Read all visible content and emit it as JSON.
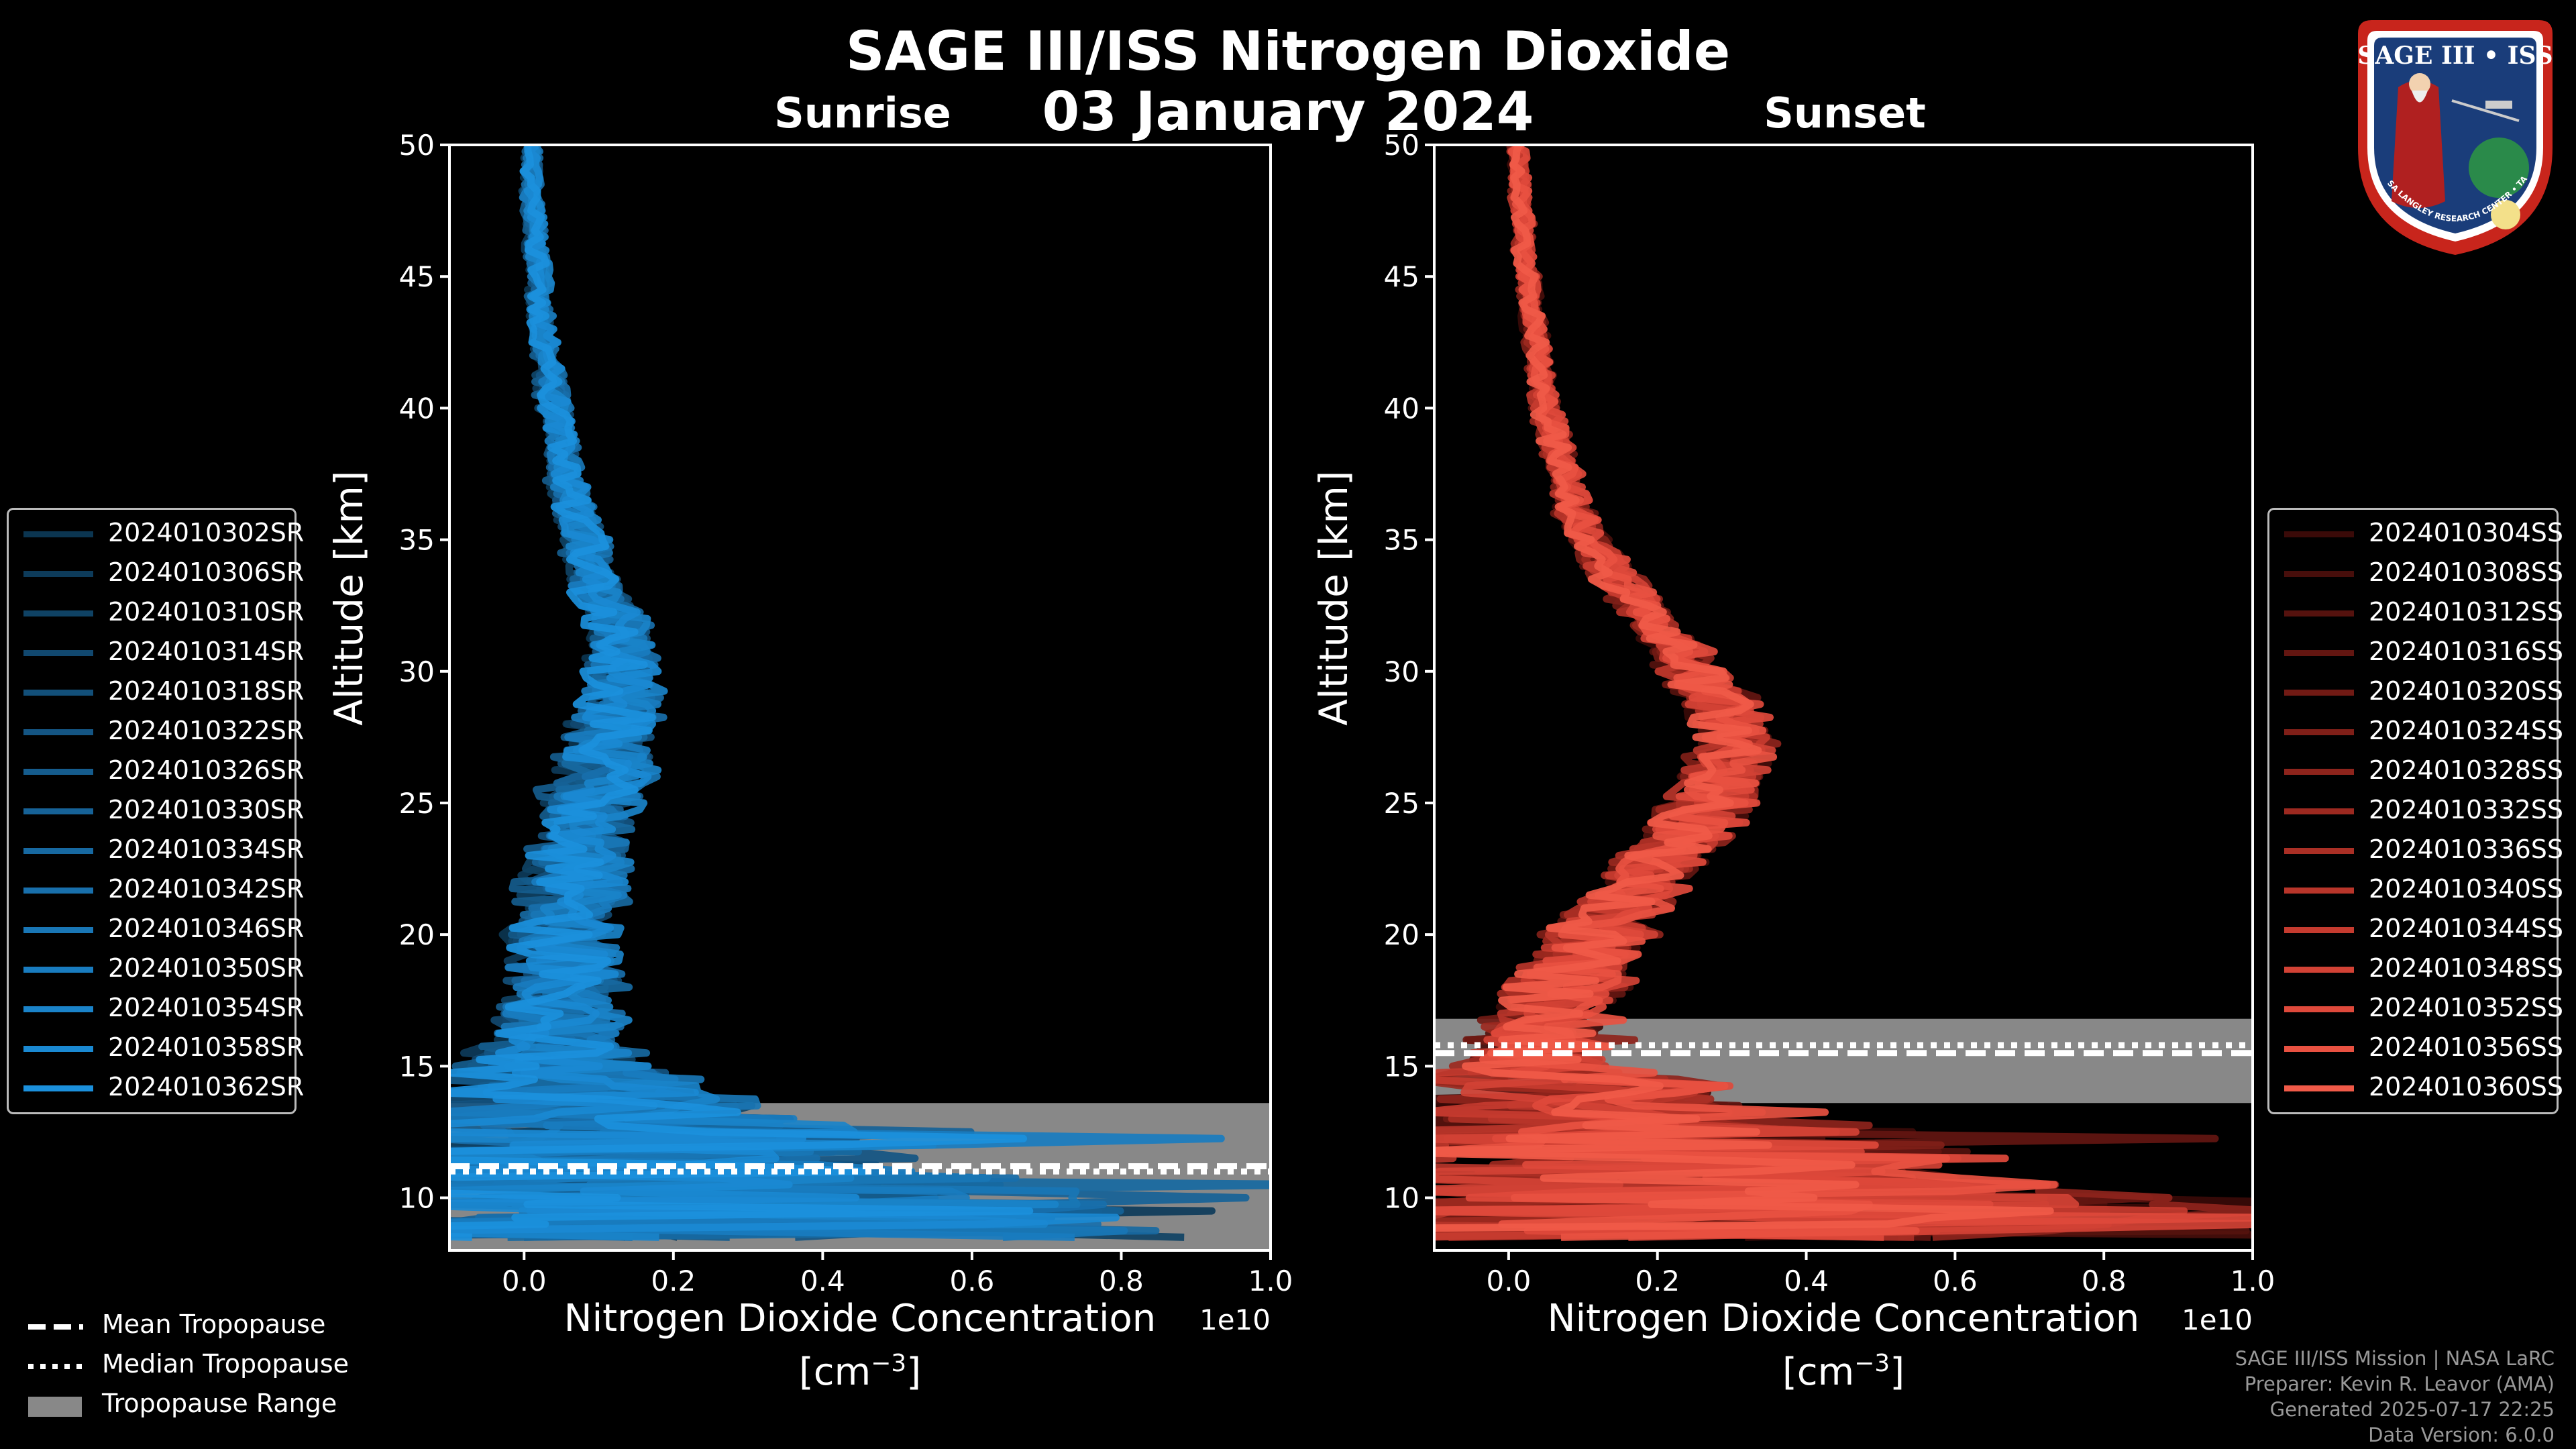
{
  "title": "SAGE III/ISS Nitrogen Dioxide",
  "date": "03 January 2024",
  "logo": {
    "line1": "SAGE III",
    "sep": "•",
    "line2": "ISS",
    "ring_text": "BALL • NASA LANGLEY RESEARCH CENTER • TAS-I • ESA"
  },
  "credits": [
    "SAGE III/ISS Mission | NASA LaRC",
    "Preparer: Kevin R. Leavor (AMA)",
    "Generated 2025-07-17 22:25",
    "Data Version: 6.0.0"
  ],
  "bottom_legend": {
    "mean": "Mean Tropopause",
    "median": "Median Tropopause",
    "range": "Tropopause Range"
  },
  "colors": {
    "sunrise_base": "#1a8cd8",
    "sunset_base": "#ef5a46",
    "tropopause_range": "#888888",
    "axes": "#ffffff"
  },
  "chart_data": [
    {
      "type": "line",
      "panel": "sunrise",
      "title": "Sunrise",
      "xlabel": "Nitrogen Dioxide Concentration",
      "xunit": "[cm",
      "xunit_exp": "−3",
      "xunit_close": "]",
      "x_offset_label": "1e10",
      "ylabel": "Altitude [km]",
      "xlim": [
        -0.1,
        1.0
      ],
      "ylim": [
        8,
        50
      ],
      "xticks": [
        0.0,
        0.2,
        0.4,
        0.6,
        0.8,
        1.0
      ],
      "xtick_labels": [
        "0.0",
        "0.2",
        "0.4",
        "0.6",
        "0.8",
        "1.0"
      ],
      "yticks": [
        10,
        15,
        20,
        25,
        30,
        35,
        40,
        45,
        50
      ],
      "ytick_labels": [
        "10",
        "15",
        "20",
        "25",
        "30",
        "35",
        "40",
        "45",
        "50"
      ],
      "tropopause": {
        "mean": 11.2,
        "median": 11.0,
        "range": [
          8.0,
          13.6
        ]
      },
      "series": [
        {
          "name": "2024010302SR",
          "color": "#0b3550"
        },
        {
          "name": "2024010306SR",
          "color": "#0d3b5a"
        },
        {
          "name": "2024010310SR",
          "color": "#0f4264"
        },
        {
          "name": "2024010314SR",
          "color": "#11486f"
        },
        {
          "name": "2024010318SR",
          "color": "#124f79"
        },
        {
          "name": "2024010322SR",
          "color": "#145583"
        },
        {
          "name": "2024010326SR",
          "color": "#155c8d"
        },
        {
          "name": "2024010330SR",
          "color": "#166297"
        },
        {
          "name": "2024010334SR",
          "color": "#1769a1"
        },
        {
          "name": "2024010342SR",
          "color": "#186fab"
        },
        {
          "name": "2024010346SR",
          "color": "#1976b5"
        },
        {
          "name": "2024010350SR",
          "color": "#197cbf"
        },
        {
          "name": "2024010354SR",
          "color": "#1a83c9"
        },
        {
          "name": "2024010358SR",
          "color": "#1a89d2"
        },
        {
          "name": "2024010362SR",
          "color": "#1b90dc"
        }
      ],
      "profile": {
        "alt": [
          8.5,
          9,
          10,
          11,
          12,
          13,
          14,
          15,
          16,
          17,
          18,
          19,
          20,
          21,
          22,
          23,
          24,
          25,
          26,
          27,
          28,
          29,
          30,
          31,
          32,
          33,
          34,
          35,
          36,
          37,
          38,
          39,
          40,
          41,
          42,
          43,
          44,
          45,
          46,
          47,
          48,
          49,
          50
        ],
        "mean": [
          0.15,
          0.2,
          0.2,
          0.15,
          0.12,
          0.1,
          0.08,
          0.05,
          0.04,
          0.04,
          0.05,
          0.05,
          0.05,
          0.06,
          0.07,
          0.07,
          0.08,
          0.09,
          0.1,
          0.11,
          0.12,
          0.13,
          0.13,
          0.13,
          0.12,
          0.1,
          0.09,
          0.08,
          0.07,
          0.06,
          0.05,
          0.05,
          0.04,
          0.035,
          0.03,
          0.025,
          0.02,
          0.02,
          0.015,
          0.015,
          0.01,
          0.01,
          0.01
        ],
        "spread": [
          0.6,
          0.6,
          0.5,
          0.4,
          0.35,
          0.3,
          0.2,
          0.13,
          0.09,
          0.08,
          0.08,
          0.07,
          0.07,
          0.07,
          0.07,
          0.06,
          0.06,
          0.06,
          0.07,
          0.06,
          0.06,
          0.05,
          0.05,
          0.04,
          0.04,
          0.035,
          0.03,
          0.03,
          0.025,
          0.025,
          0.02,
          0.02,
          0.02,
          0.018,
          0.016,
          0.015,
          0.015,
          0.014,
          0.013,
          0.012,
          0.012,
          0.011,
          0.01
        ]
      }
    },
    {
      "type": "line",
      "panel": "sunset",
      "title": "Sunset",
      "xlabel": "Nitrogen Dioxide Concentration",
      "xunit": "[cm",
      "xunit_exp": "−3",
      "xunit_close": "]",
      "x_offset_label": "1e10",
      "ylabel": "Altitude [km]",
      "xlim": [
        -0.1,
        1.0
      ],
      "ylim": [
        8,
        50
      ],
      "xticks": [
        0.0,
        0.2,
        0.4,
        0.6,
        0.8,
        1.0
      ],
      "xtick_labels": [
        "0.0",
        "0.2",
        "0.4",
        "0.6",
        "0.8",
        "1.0"
      ],
      "yticks": [
        10,
        15,
        20,
        25,
        30,
        35,
        40,
        45,
        50
      ],
      "ytick_labels": [
        "10",
        "15",
        "20",
        "25",
        "30",
        "35",
        "40",
        "45",
        "50"
      ],
      "tropopause": {
        "mean": 15.5,
        "median": 15.8,
        "range": [
          13.6,
          16.8
        ]
      },
      "series": [
        {
          "name": "2024010304SS",
          "color": "#3a0a08"
        },
        {
          "name": "2024010308SS",
          "color": "#470e0b"
        },
        {
          "name": "2024010312SS",
          "color": "#55120e"
        },
        {
          "name": "2024010316SS",
          "color": "#631611"
        },
        {
          "name": "2024010320SS",
          "color": "#711a14"
        },
        {
          "name": "2024010324SS",
          "color": "#801f18"
        },
        {
          "name": "2024010328SS",
          "color": "#8e241c"
        },
        {
          "name": "2024010332SS",
          "color": "#9c2920"
        },
        {
          "name": "2024010336SS",
          "color": "#aa2f25"
        },
        {
          "name": "2024010340SS",
          "color": "#b8352a"
        },
        {
          "name": "2024010344SS",
          "color": "#c53b2f"
        },
        {
          "name": "2024010348SS",
          "color": "#d24235"
        },
        {
          "name": "2024010352SS",
          "color": "#de493b"
        },
        {
          "name": "2024010356SS",
          "color": "#e85141"
        },
        {
          "name": "2024010360SS",
          "color": "#f05a48"
        }
      ],
      "profile": {
        "alt": [
          8.5,
          9,
          10,
          11,
          12,
          13,
          14,
          15,
          16,
          17,
          18,
          19,
          20,
          21,
          22,
          23,
          24,
          25,
          26,
          27,
          28,
          29,
          30,
          31,
          32,
          33,
          34,
          35,
          36,
          37,
          38,
          39,
          40,
          41,
          42,
          43,
          44,
          45,
          46,
          47,
          48,
          49,
          50
        ],
        "mean": [
          0.2,
          0.25,
          0.25,
          0.2,
          0.15,
          0.1,
          0.07,
          0.04,
          0.05,
          0.06,
          0.08,
          0.1,
          0.12,
          0.15,
          0.18,
          0.21,
          0.24,
          0.27,
          0.29,
          0.3,
          0.3,
          0.28,
          0.25,
          0.22,
          0.19,
          0.16,
          0.13,
          0.11,
          0.09,
          0.08,
          0.07,
          0.06,
          0.05,
          0.045,
          0.04,
          0.035,
          0.03,
          0.025,
          0.02,
          0.02,
          0.015,
          0.015,
          0.01
        ],
        "spread": [
          0.7,
          0.7,
          0.6,
          0.45,
          0.35,
          0.3,
          0.25,
          0.12,
          0.1,
          0.08,
          0.08,
          0.07,
          0.07,
          0.06,
          0.06,
          0.06,
          0.06,
          0.06,
          0.06,
          0.05,
          0.05,
          0.05,
          0.045,
          0.04,
          0.035,
          0.03,
          0.03,
          0.025,
          0.025,
          0.02,
          0.02,
          0.02,
          0.018,
          0.016,
          0.015,
          0.015,
          0.014,
          0.013,
          0.012,
          0.012,
          0.011,
          0.011,
          0.01
        ]
      }
    }
  ]
}
